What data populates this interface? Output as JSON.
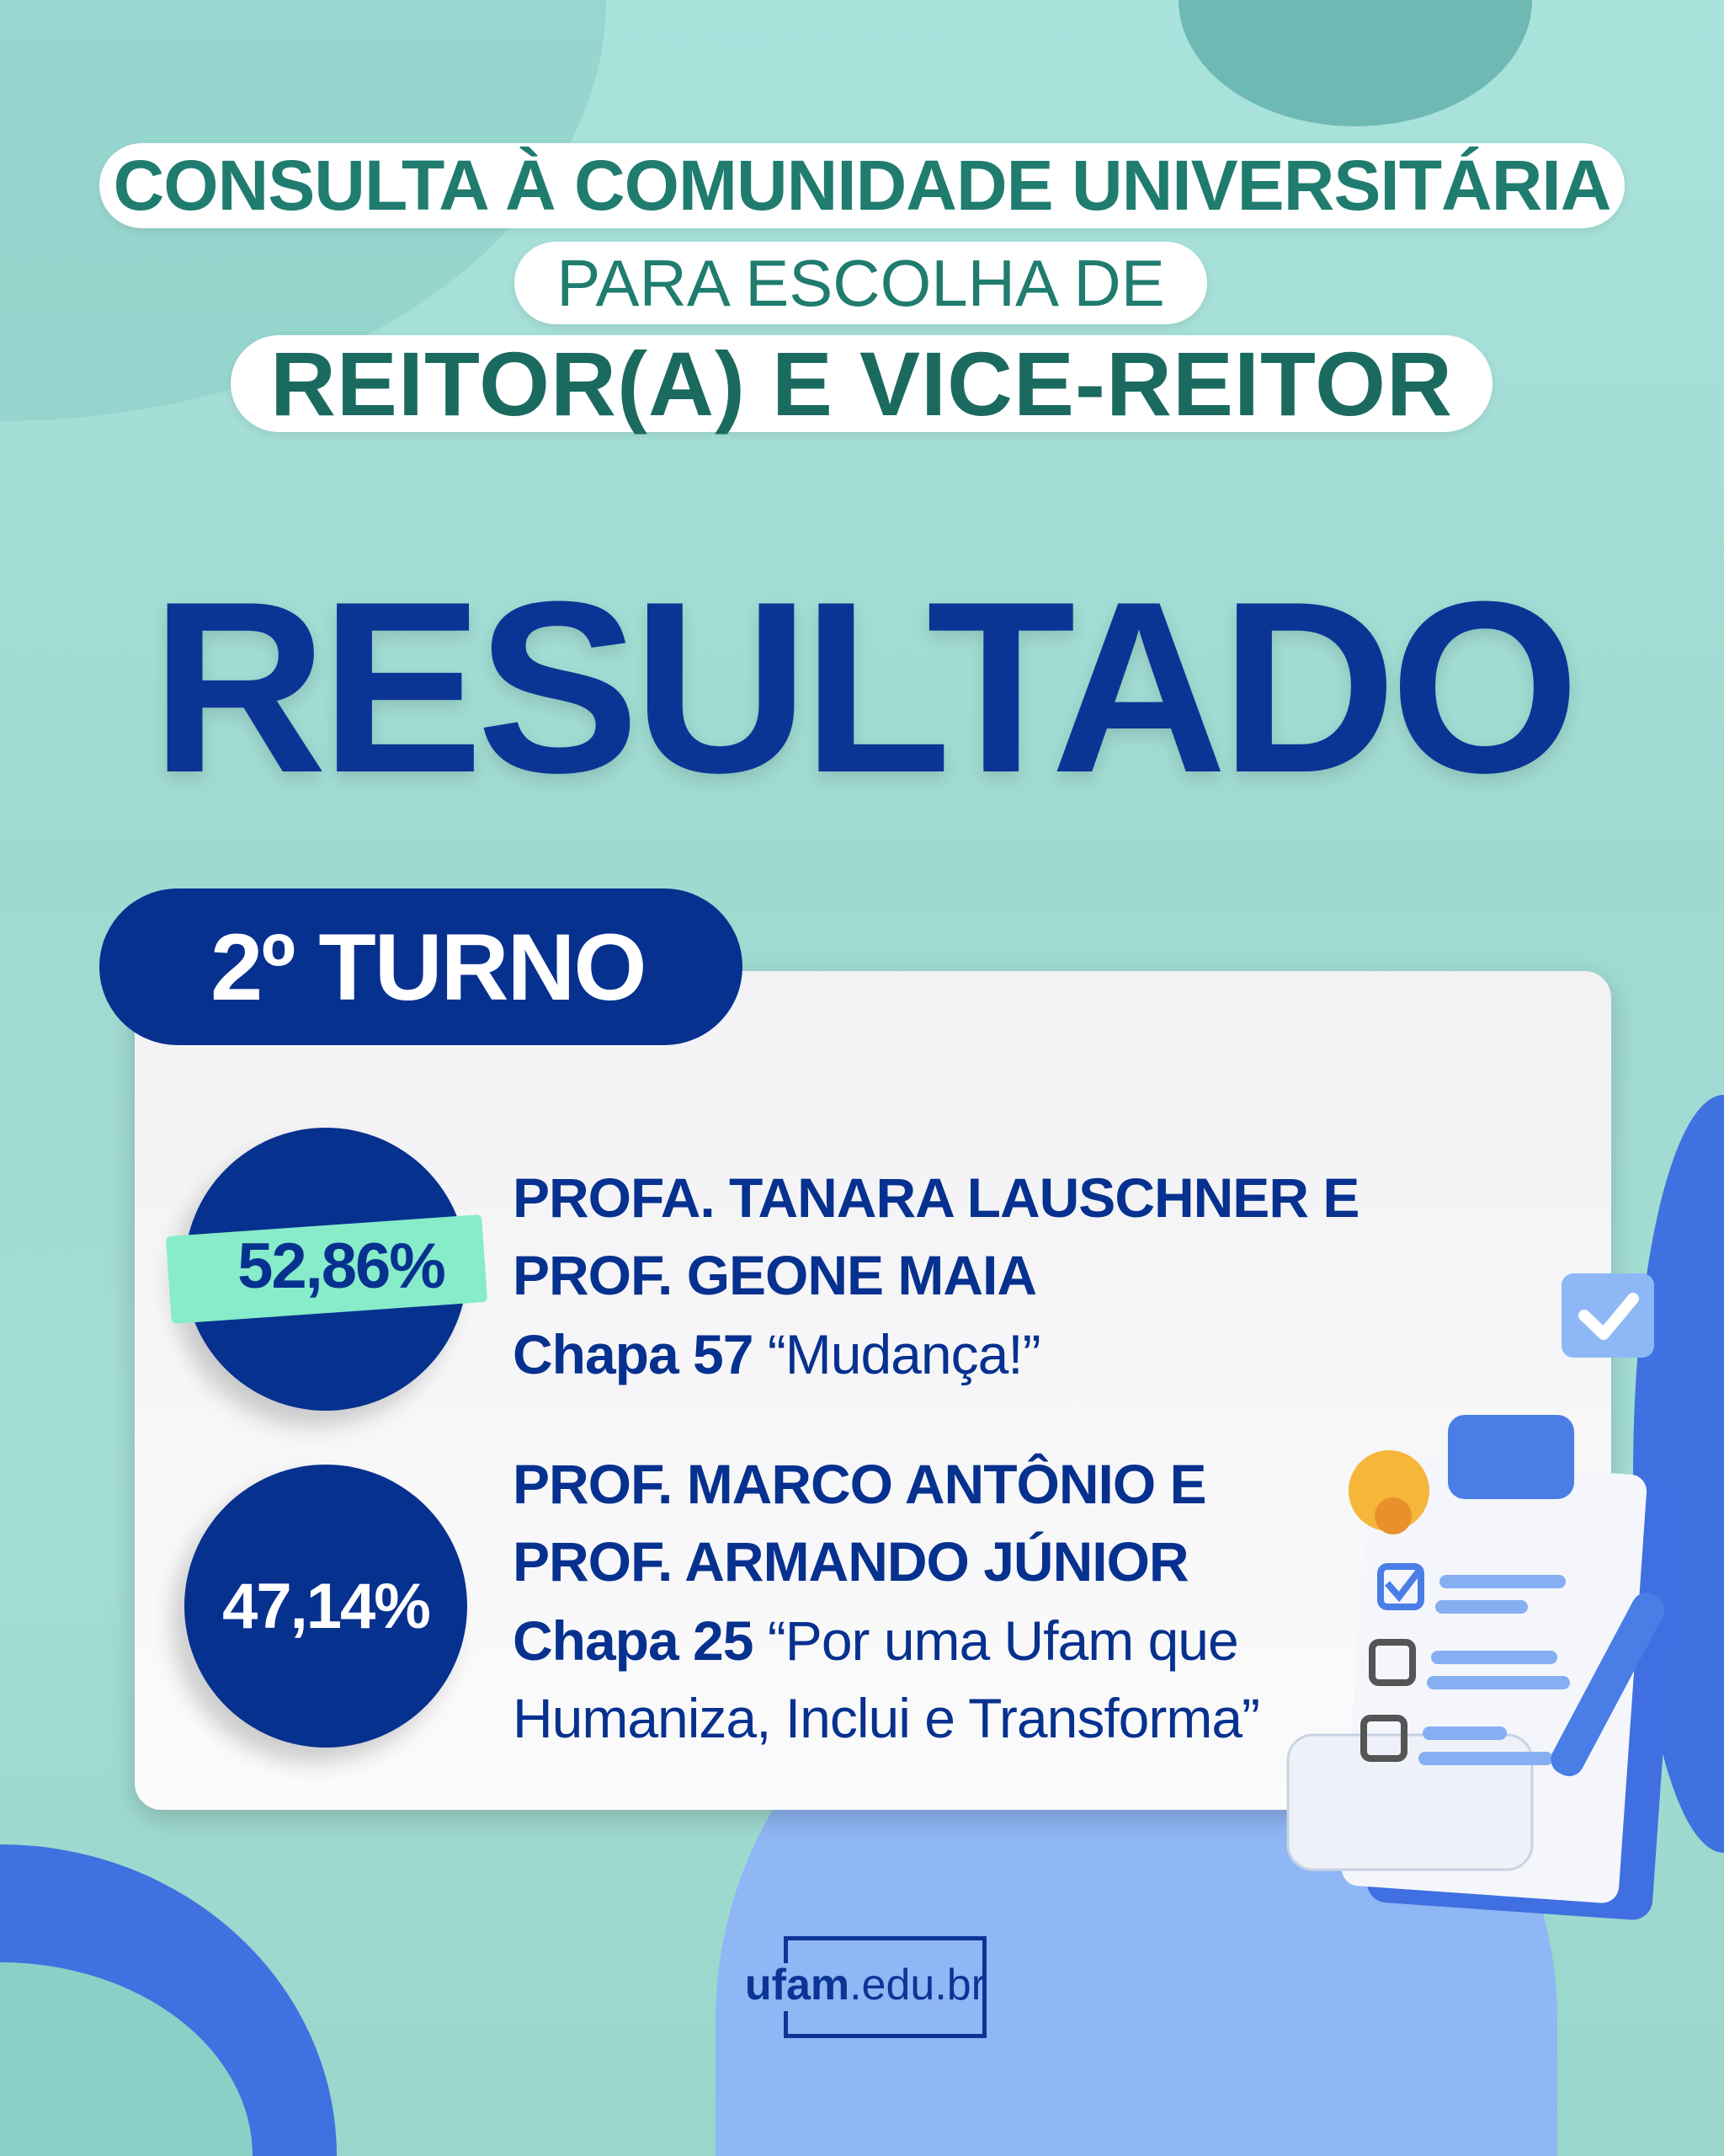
{
  "header": {
    "line1": "CONSULTA À COMUNIDADE UNIVERSITÁRIA",
    "line2": "PARA ESCOLHA DE",
    "line3": "REITOR(A) E VICE-REITOR"
  },
  "title": "RESULTADO",
  "round": "2º TURNO",
  "candidates": [
    {
      "percent": "52,86%",
      "names_line1": "PROFA. TANARA LAUSCHNER E",
      "names_line2": "PROF. GEONE MAIA",
      "slate": "Chapa 57",
      "slogan_line1": "“Mudança!”",
      "highlighted": true
    },
    {
      "percent": "47,14%",
      "names_line1": "PROF. MARCO ANTÔNIO E",
      "names_line2": "PROF. ARMANDO JÚNIOR",
      "slate": "Chapa 25",
      "slogan_line1": "“Por uma Ufam que",
      "slogan_line2": "Humaniza, Inclui e Transforma”",
      "highlighted": false
    }
  ],
  "footer": {
    "logo_bold": "ufam",
    "logo_rest": ".edu.br"
  },
  "colors": {
    "primary_blue": "#07318f",
    "teal_text": "#1f7c6f",
    "highlight_green": "#86ecc9",
    "background": "#a9e3dc",
    "blob_blue": "#8fb6f5"
  }
}
